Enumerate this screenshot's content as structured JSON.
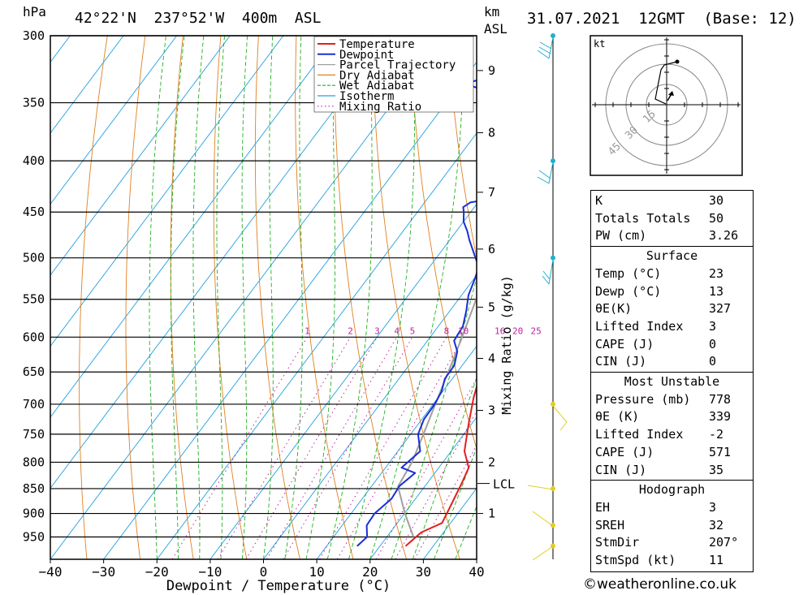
{
  "header": {
    "hpa_label": "hPa",
    "location": "42°22'N  237°52'W  400m  ASL",
    "km_label": "km",
    "asl_label": "ASL",
    "datetime": "31.07.2021  12GMT  (Base: 12)"
  },
  "chart_data": {
    "type": "line",
    "title": "42°22'N  237°52'W  400m  ASL",
    "xlabel": "Dewpoint / Temperature (°C)",
    "ylabel": "hPa",
    "xlim": [
      -40,
      40
    ],
    "ylim": [
      300,
      1000
    ],
    "x_ticks": [
      -40,
      -30,
      -20,
      -10,
      0,
      10,
      20,
      30,
      40
    ],
    "pressure_levels": [
      300,
      350,
      400,
      450,
      500,
      550,
      600,
      650,
      700,
      750,
      800,
      850,
      900,
      950
    ],
    "km_ticks": [
      {
        "label": "1",
        "p": 900
      },
      {
        "label": "2",
        "p": 800
      },
      {
        "label": "3",
        "p": 710
      },
      {
        "label": "4",
        "p": 630
      },
      {
        "label": "5",
        "p": 560
      },
      {
        "label": "6",
        "p": 490
      },
      {
        "label": "7",
        "p": 430
      },
      {
        "label": "8",
        "p": 375
      },
      {
        "label": "9",
        "p": 325
      }
    ],
    "lcl_label": "LCL",
    "lcl_pressure": 840,
    "mixing_ratio_title": "Mixing Ratio (g/kg)",
    "mixing_ratio_labels": [
      "1",
      "2",
      "3",
      "4",
      "5",
      "8",
      "10",
      "16",
      "20",
      "25"
    ],
    "legend": [
      "Temperature",
      "Dewpoint",
      "Parcel Trajectory",
      "Dry Adiabat",
      "Wet Adiabat",
      "Isotherm",
      "Mixing Ratio"
    ],
    "colors": {
      "temperature": "#e02020",
      "dewpoint": "#1a2fd6",
      "parcel": "#a0a0a0",
      "dry_adiabat": "#e08020",
      "wet_adiabat": "#20b020",
      "isotherm": "#20a0e0",
      "mixing_ratio": "#c020a0",
      "wind": "#20b0d0",
      "wind_low": "#e0d020"
    },
    "series": [
      {
        "name": "Temperature",
        "points": [
          [
            24.8,
            970
          ],
          [
            25.8,
            940
          ],
          [
            28.4,
            920
          ],
          [
            27.5,
            880
          ],
          [
            26.5,
            840
          ],
          [
            25.6,
            810
          ],
          [
            22.5,
            780
          ],
          [
            19.6,
            735
          ],
          [
            16.7,
            690
          ],
          [
            15.3,
            665
          ],
          [
            12.9,
            635
          ],
          [
            11,
            600
          ],
          [
            8.6,
            570
          ],
          [
            6.1,
            540
          ],
          [
            4,
            510
          ],
          [
            3.9,
            495
          ],
          [
            1.6,
            470
          ],
          [
            -0.2,
            450
          ],
          [
            -2.1,
            430
          ],
          [
            -2.7,
            425
          ],
          [
            -2.6,
            415
          ],
          [
            -4.3,
            405
          ],
          [
            -6.3,
            385
          ],
          [
            -8.1,
            370
          ],
          [
            -9.9,
            355
          ],
          [
            -9.5,
            345
          ],
          [
            -11.9,
            328
          ],
          [
            -13.7,
            312
          ],
          [
            -15.5,
            300
          ]
        ]
      },
      {
        "name": "Dewpoint",
        "points": [
          [
            15.7,
            970
          ],
          [
            16.3,
            950
          ],
          [
            14.6,
            925
          ],
          [
            14.4,
            900
          ],
          [
            15.5,
            870
          ],
          [
            15.2,
            845
          ],
          [
            16.3,
            820
          ],
          [
            13,
            810
          ],
          [
            14.2,
            780
          ],
          [
            11.4,
            750
          ],
          [
            10.4,
            725
          ],
          [
            10.3,
            700
          ],
          [
            9.8,
            680
          ],
          [
            8.6,
            660
          ],
          [
            8.5,
            640
          ],
          [
            7.1,
            620
          ],
          [
            5,
            605
          ],
          [
            4.6,
            585
          ],
          [
            3.1,
            565
          ],
          [
            1.3,
            545
          ],
          [
            0.2,
            525
          ],
          [
            -0.8,
            510
          ],
          [
            -2.3,
            502
          ],
          [
            -6.3,
            480
          ],
          [
            -8,
            470
          ],
          [
            -10,
            460
          ],
          [
            -11.3,
            450
          ],
          [
            -12.1,
            445
          ],
          [
            -11.4,
            440
          ],
          [
            -5.8,
            435
          ],
          [
            -5.9,
            425
          ],
          [
            -15.2,
            405
          ],
          [
            -13.7,
            395
          ],
          [
            -12.5,
            385
          ],
          [
            -13.1,
            372
          ],
          [
            -14.4,
            365
          ],
          [
            -15,
            355
          ],
          [
            -18.3,
            348
          ],
          [
            -19.8,
            345
          ],
          [
            -29.3,
            335
          ],
          [
            -17.8,
            320
          ],
          [
            -5.3,
            310
          ],
          [
            -9.4,
            305
          ],
          [
            -9.2,
            300
          ]
        ]
      },
      {
        "name": "Parcel Trajectory",
        "points": [
          [
            25,
            950
          ],
          [
            20.1,
            900
          ],
          [
            15,
            846
          ],
          [
            14.2,
            800
          ],
          [
            12.4,
            750
          ],
          [
            10.4,
            700
          ],
          [
            8.3,
            650
          ],
          [
            6,
            600
          ],
          [
            3.3,
            550
          ],
          [
            0.3,
            500
          ],
          [
            -3.2,
            450
          ],
          [
            -7.6,
            400
          ],
          [
            -12.7,
            350
          ],
          [
            -18.4,
            300
          ]
        ]
      }
    ]
  },
  "hodograph": {
    "unit_label": "kt",
    "ring_labels": [
      "15",
      "30",
      "45"
    ]
  },
  "indices": {
    "general": [
      {
        "k": "K",
        "v": "30"
      },
      {
        "k": "Totals Totals",
        "v": "50"
      },
      {
        "k": "PW (cm)",
        "v": "3.26"
      }
    ],
    "surface_title": "Surface",
    "surface": [
      {
        "k": "Temp (°C)",
        "v": "23"
      },
      {
        "k": "Dewp (°C)",
        "v": "13"
      },
      {
        "k": "θE(K)",
        "v": "327"
      },
      {
        "k": "Lifted Index",
        "v": "3"
      },
      {
        "k": "CAPE (J)",
        "v": "0"
      },
      {
        "k": "CIN (J)",
        "v": "0"
      }
    ],
    "mu_title": "Most Unstable",
    "mu": [
      {
        "k": "Pressure (mb)",
        "v": "778"
      },
      {
        "k": "θE (K)",
        "v": "339"
      },
      {
        "k": "Lifted Index",
        "v": "-2"
      },
      {
        "k": "CAPE (J)",
        "v": "571"
      },
      {
        "k": "CIN (J)",
        "v": "35"
      }
    ],
    "hodo_title": "Hodograph",
    "hodo": [
      {
        "k": "EH",
        "v": "3"
      },
      {
        "k": "SREH",
        "v": "32"
      },
      {
        "k": "StmDir",
        "v": "207°"
      },
      {
        "k": "StmSpd (kt)",
        "v": "11"
      }
    ]
  },
  "footer": "©weatheronline.co.uk"
}
